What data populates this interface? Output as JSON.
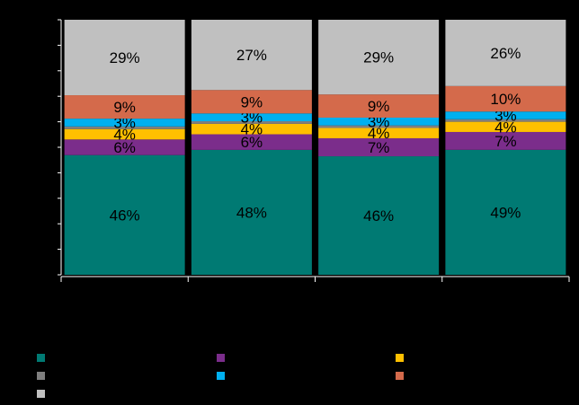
{
  "chart_data": {
    "type": "bar",
    "stacked": true,
    "percent": true,
    "categories": [
      "",
      "",
      "",
      ""
    ],
    "ylim": [
      0,
      100
    ],
    "grid": false,
    "legend_position": "bottom",
    "series": [
      {
        "values": [
          46,
          48,
          46,
          49
        ],
        "labels": [
          "46%",
          "48%",
          "46%",
          "49%"
        ],
        "color": "#007A73"
      },
      {
        "values": [
          6,
          6,
          7,
          7
        ],
        "labels": [
          "6%",
          "6%",
          "7%",
          "7%"
        ],
        "color": "#7B2D8B"
      },
      {
        "values": [
          4,
          4,
          4,
          4
        ],
        "labels": [
          "4%",
          "4%",
          "4%",
          "4%"
        ],
        "color": "#FFC000"
      },
      {
        "values": [
          1,
          1,
          1,
          1
        ],
        "labels": [
          "",
          "",
          "",
          ""
        ],
        "color": "#7F7F7F"
      },
      {
        "values": [
          3,
          3,
          3,
          3
        ],
        "labels": [
          "3%",
          "3%",
          "3%",
          "3%"
        ],
        "color": "#00B0F0"
      },
      {
        "values": [
          9,
          9,
          9,
          10
        ],
        "labels": [
          "9%",
          "9%",
          "9%",
          "10%"
        ],
        "color": "#D46A4B"
      },
      {
        "values": [
          29,
          27,
          29,
          26
        ],
        "labels": [
          "29%",
          "27%",
          "29%",
          "26%"
        ],
        "color": "#C0C0C0"
      }
    ]
  }
}
